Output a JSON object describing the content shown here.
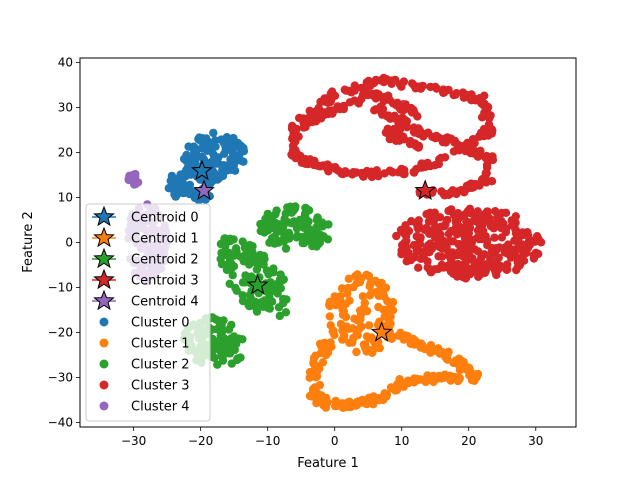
{
  "chart_data": {
    "type": "scatter",
    "title": "",
    "xlabel": "Feature 1",
    "ylabel": "Feature 2",
    "xlim": [
      -38,
      36
    ],
    "ylim": [
      -41,
      41
    ],
    "xticks": [
      -30,
      -20,
      -10,
      0,
      10,
      20,
      30
    ],
    "yticks": [
      -40,
      -30,
      -20,
      -10,
      0,
      10,
      20,
      30,
      40
    ],
    "xtick_labels": [
      "−30",
      "−20",
      "−10",
      "0",
      "10",
      "20",
      "30"
    ],
    "ytick_labels": [
      "−40",
      "−30",
      "−20",
      "−10",
      "0",
      "10",
      "20",
      "30",
      "40"
    ],
    "grid": false,
    "legend_position": "lower-left",
    "series": [
      {
        "name": "Cluster 0",
        "color": "#1f77b4",
        "marker": "circle",
        "clusters": [
          {
            "shape": "blob",
            "center": [
              -18,
              19
            ],
            "radius": [
              4.5,
              5.5
            ],
            "angle": -15,
            "samples": 120
          },
          {
            "shape": "blob",
            "center": [
              -21,
              13
            ],
            "radius": [
              4,
              4
            ],
            "angle": 0,
            "samples": 70
          }
        ]
      },
      {
        "name": "Cluster 1",
        "color": "#ff7f0e",
        "marker": "circle",
        "clusters": [
          {
            "shape": "blob",
            "center": [
              4,
              -16
            ],
            "radius": [
              5,
              9
            ],
            "angle": 0,
            "samples": 120
          },
          {
            "shape": "path",
            "points": [
              [
                7,
                -20
              ],
              [
                12,
                -22
              ],
              [
                18,
                -26
              ],
              [
                21,
                -30
              ],
              [
                16,
                -30
              ],
              [
                10,
                -31
              ],
              [
                8,
                -34
              ],
              [
                3,
                -36
              ],
              [
                -1,
                -36
              ],
              [
                -3,
                -34
              ],
              [
                -3,
                -28
              ],
              [
                -1,
                -22
              ]
            ],
            "width": 1.6,
            "samples": 220
          }
        ]
      },
      {
        "name": "Cluster 2",
        "color": "#2ca02c",
        "marker": "circle",
        "clusters": [
          {
            "shape": "blob",
            "center": [
              -6,
              3
            ],
            "radius": [
              5.5,
              5
            ],
            "angle": -20,
            "samples": 110
          },
          {
            "shape": "blob",
            "center": [
              -12,
              -8
            ],
            "radius": [
              4,
              10
            ],
            "angle": 25,
            "samples": 120
          },
          {
            "shape": "blob",
            "center": [
              -18,
              -22
            ],
            "radius": [
              4.5,
              6
            ],
            "angle": 15,
            "samples": 100
          }
        ]
      },
      {
        "name": "Cluster 3",
        "color": "#d62728",
        "marker": "circle",
        "clusters": [
          {
            "shape": "path",
            "points": [
              [
                -5,
                27
              ],
              [
                0,
                33
              ],
              [
                7,
                36
              ],
              [
                15,
                34
              ],
              [
                22,
                32
              ],
              [
                23,
                25
              ],
              [
                19,
                21
              ],
              [
                12,
                16
              ],
              [
                3,
                15
              ],
              [
                -6,
                19
              ],
              [
                -6,
                25
              ],
              [
                -1,
                29
              ],
              [
                6,
                33
              ],
              [
                12,
                29
              ],
              [
                8,
                24
              ],
              [
                14,
                21
              ]
            ],
            "width": 1.4,
            "samples": 320
          },
          {
            "shape": "path",
            "points": [
              [
                6,
                30
              ],
              [
                12,
                25
              ],
              [
                18,
                22
              ],
              [
                23,
                19
              ],
              [
                23,
                14
              ],
              [
                18,
                11
              ],
              [
                13,
                11
              ]
            ],
            "width": 1.3,
            "samples": 120
          },
          {
            "shape": "blob",
            "center": [
              20,
              0
            ],
            "radius": [
              11,
              8
            ],
            "angle": 0,
            "samples": 320
          }
        ]
      },
      {
        "name": "Cluster 4",
        "color": "#9467bd",
        "marker": "circle",
        "clusters": [
          {
            "shape": "blob",
            "center": [
              -28,
              0
            ],
            "radius": [
              3,
              9
            ],
            "angle": 0,
            "samples": 110
          },
          {
            "shape": "blob",
            "center": [
              -30,
              14
            ],
            "radius": [
              0.8,
              1.5
            ],
            "angle": 0,
            "samples": 15
          }
        ]
      }
    ],
    "centroids": [
      {
        "name": "Centroid 0",
        "x": -19.8,
        "y": 15.9,
        "color": "#1f77b4"
      },
      {
        "name": "Centroid 1",
        "x": 7.0,
        "y": -20.0,
        "color": "#ff7f0e"
      },
      {
        "name": "Centroid 2",
        "x": -11.5,
        "y": -9.5,
        "color": "#2ca02c"
      },
      {
        "name": "Centroid 3",
        "x": 13.5,
        "y": 11.5,
        "color": "#d62728"
      },
      {
        "name": "Centroid 4",
        "x": -19.5,
        "y": 11.5,
        "color": "#9467bd"
      }
    ],
    "legend": [
      {
        "label": "Centroid 0",
        "kind": "star",
        "color": "#1f77b4"
      },
      {
        "label": "Centroid 1",
        "kind": "star",
        "color": "#ff7f0e"
      },
      {
        "label": "Centroid 2",
        "kind": "star",
        "color": "#2ca02c"
      },
      {
        "label": "Centroid 3",
        "kind": "star",
        "color": "#d62728"
      },
      {
        "label": "Centroid 4",
        "kind": "star",
        "color": "#9467bd"
      },
      {
        "label": "Cluster 0",
        "kind": "dot",
        "color": "#1f77b4"
      },
      {
        "label": "Cluster 1",
        "kind": "dot",
        "color": "#ff7f0e"
      },
      {
        "label": "Cluster 2",
        "kind": "dot",
        "color": "#2ca02c"
      },
      {
        "label": "Cluster 3",
        "kind": "dot",
        "color": "#d62728"
      },
      {
        "label": "Cluster 4",
        "kind": "dot",
        "color": "#9467bd"
      }
    ]
  }
}
